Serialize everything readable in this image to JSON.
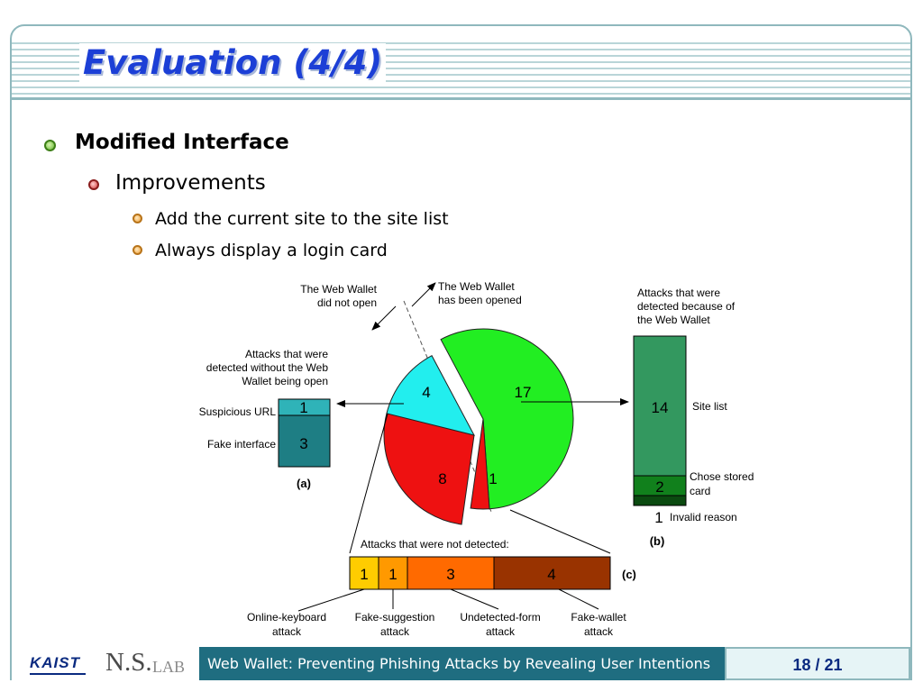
{
  "title": "Evaluation (4/4)",
  "bullets": {
    "level1": "Modified Interface",
    "level2": "Improvements",
    "level3": [
      "Add the current site to the site list",
      "Always display a login card"
    ]
  },
  "figure": {
    "top_labels": {
      "did_not_open": [
        "The Web Wallet",
        "did not open"
      ],
      "opened": [
        "The Web Wallet",
        "has been opened"
      ]
    },
    "pie": {
      "slices": [
        {
          "label": "17",
          "value": 17,
          "color": "#22ee22"
        },
        {
          "label": "1",
          "value": 1,
          "color": "#ee1111"
        },
        {
          "label": "8",
          "value": 8,
          "color": "#ee1111"
        },
        {
          "label": "4",
          "value": 4,
          "color": "#22eeee"
        }
      ]
    },
    "panel_a": {
      "caption": "(a)",
      "heading": [
        "Attacks that were",
        "detected without the Web",
        "Wallet being open"
      ],
      "rows": [
        {
          "label": "Suspicious URL",
          "value": "1",
          "color": "#2fb3b8"
        },
        {
          "label": "Fake interface",
          "value": "3",
          "color": "#1e7e84"
        }
      ]
    },
    "panel_b": {
      "caption": "(b)",
      "heading": [
        "Attacks that were",
        "detected because of",
        "the Web Wallet"
      ],
      "rows": [
        {
          "label": [
            "Site list"
          ],
          "value": "14",
          "color": "#33985f"
        },
        {
          "label": [
            "Chose stored",
            "card"
          ],
          "value": "2",
          "color": "#11801c"
        },
        {
          "label": [
            "Invalid reason"
          ],
          "value": "1",
          "color": "#0b4a10"
        }
      ]
    },
    "panel_c": {
      "caption": "(c)",
      "heading": "Attacks that were not detected:",
      "cells": [
        {
          "value": "1",
          "color": "#ffcc00",
          "label": [
            "Online-keyboard",
            "attack"
          ]
        },
        {
          "value": "1",
          "color": "#ff9900",
          "label": [
            "Fake-suggestion",
            "attack"
          ]
        },
        {
          "value": "3",
          "color": "#ff6a00",
          "label": [
            "Undetected-form",
            "attack"
          ]
        },
        {
          "value": "4",
          "color": "#993300",
          "label": [
            "Fake-wallet",
            "attack"
          ]
        }
      ]
    }
  },
  "footer": {
    "logo": "KAIST",
    "lab_big": "N.S.",
    "lab_small": "LAB",
    "title": "Web Wallet: Preventing Phishing Attacks by Revealing User Intentions",
    "page": "18 / 21"
  }
}
